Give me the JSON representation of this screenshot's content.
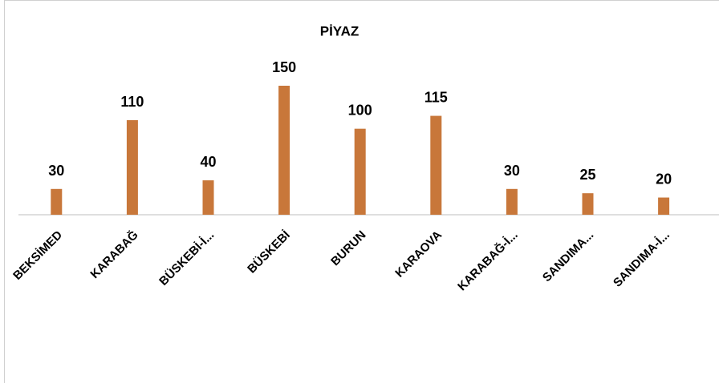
{
  "chart_data": {
    "type": "bar",
    "title": "PİYAZ",
    "categories": [
      "BEKSİMED",
      "KARABAĞ",
      "BÜSKEBİ-İ...",
      "BÜSKEBİ",
      "BURUN",
      "KARAOVA",
      "KARABAĞ-İ...",
      "SANDIMA...",
      "SANDIMA-İ..."
    ],
    "values": [
      30,
      110,
      40,
      150,
      100,
      115,
      30,
      25,
      20
    ],
    "color": "#c8773a",
    "ylim": [
      0,
      150
    ]
  }
}
